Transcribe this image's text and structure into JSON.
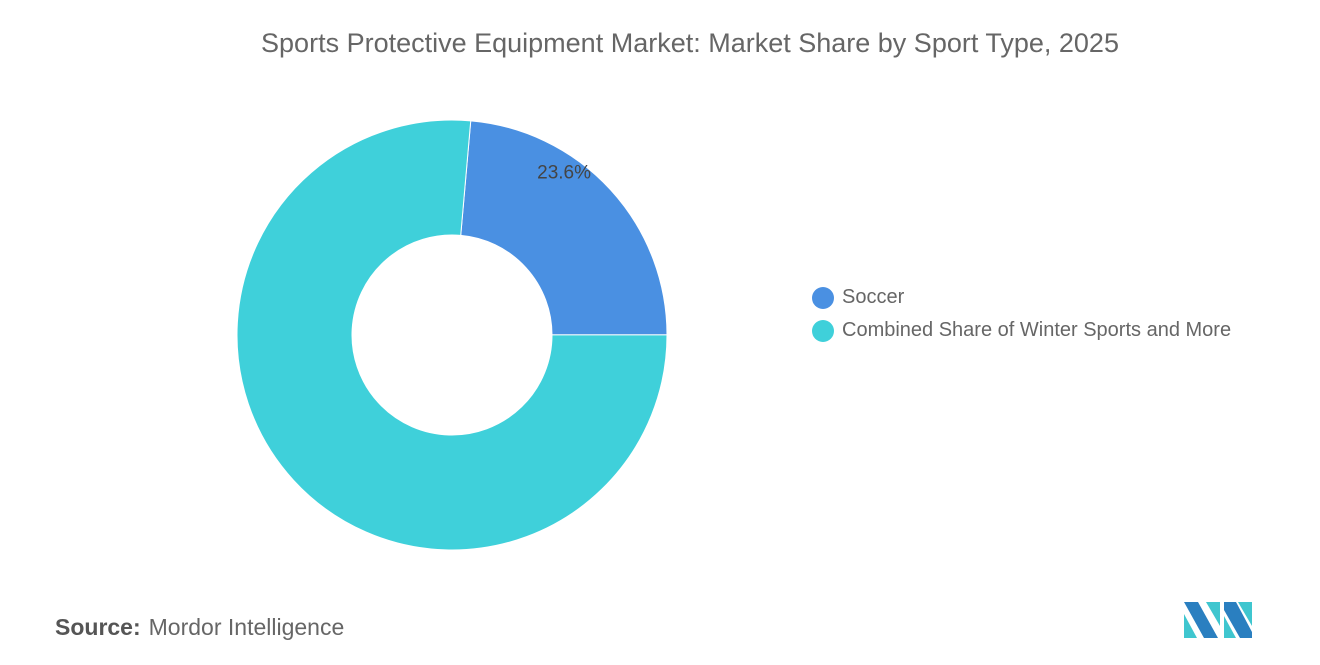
{
  "title": "Sports Protective Equipment Market: Market Share by Sport Type, 2025",
  "chart_data": {
    "type": "pie",
    "donut": true,
    "title": "Sports Protective Equipment Market: Market Share by Sport Type, 2025",
    "categories": [
      "Soccer",
      "Combined Share of Winter Sports and More"
    ],
    "values": [
      23.6,
      76.4
    ],
    "colors": [
      "#4a90e2",
      "#3fd0da"
    ],
    "data_labels": [
      "23.6%",
      ""
    ],
    "legend_position": "right"
  },
  "source": {
    "label": "Source:",
    "value": "Mordor Intelligence"
  },
  "logo": {
    "colors": [
      "#2a7fc0",
      "#3fc6cf"
    ]
  }
}
